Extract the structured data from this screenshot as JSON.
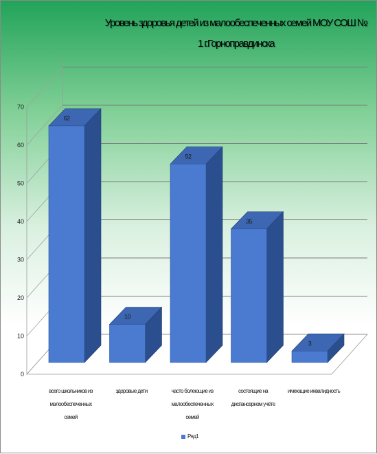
{
  "chart_data": {
    "type": "bar",
    "title": "Уровень здоровья детей из малообеспеченных семей МОУ СОШ № 1 г. Горно-правдинска",
    "title_lines": [
      "Уровень здоровья детей из малообеспеченных семей МОУ СОШ №",
      "1 г.Горноправдинска"
    ],
    "categories": [
      "всего школьников из малообеспеченных семей",
      "здоровые дети",
      "часто болеющие из малообеспеченных семей",
      "состоящие на диспансерном учёте",
      "имеющие инвалидность"
    ],
    "category_lines": [
      [
        "всего школьников из",
        "малообеспеченных",
        "семей"
      ],
      [
        "здоровые дети"
      ],
      [
        "часто болеющие из",
        "малообеспеченных",
        "семей"
      ],
      [
        "состоящие на",
        "диспансерном учёте"
      ],
      [
        "имеющие инвалидность"
      ]
    ],
    "series": [
      {
        "name": "Ряд1",
        "values": [
          62,
          10,
          52,
          35,
          3
        ]
      }
    ],
    "y_ticks": [
      0,
      10,
      20,
      30,
      40,
      50,
      60,
      70
    ],
    "ylim": [
      0,
      70
    ],
    "grid": true,
    "legend_position": "bottom",
    "style_3d": true,
    "colors": {
      "bar_front": "#4a7bd0",
      "bar_side": "#2b4e8f",
      "bar_top": "#3d67b3",
      "gridline": "#7a7a7a",
      "background_top": "#22a35a"
    }
  }
}
